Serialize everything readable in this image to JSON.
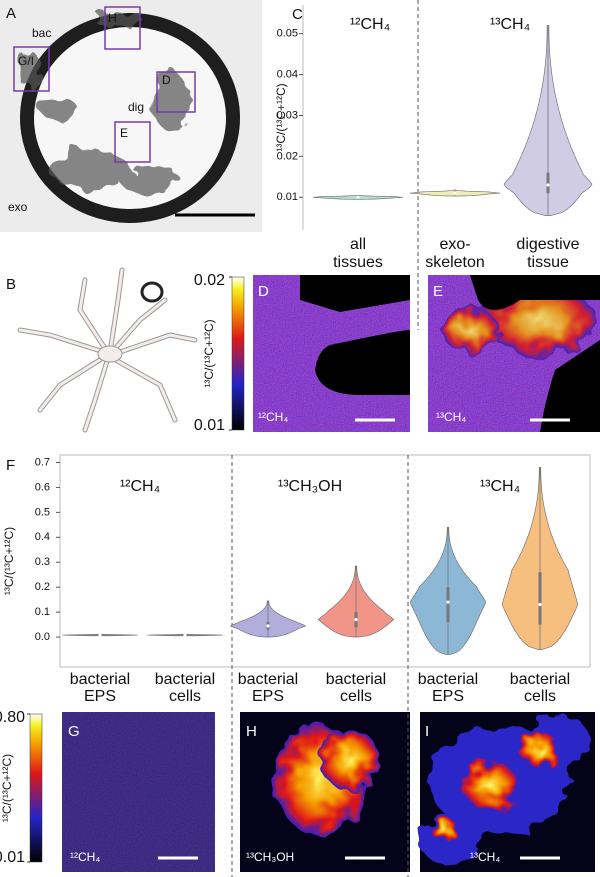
{
  "panel_a": {
    "letter": "A",
    "labels": [
      "bac",
      "dig",
      "exo"
    ],
    "boxes": [
      "G/I",
      "H",
      "D",
      "E"
    ]
  },
  "panel_b": {
    "letter": "B"
  },
  "colorbars": [
    {
      "label": "¹³C/(¹³C+¹²C)",
      "ticks": [
        0.01,
        0.02
      ]
    },
    {
      "label": "¹³C/(¹³C+¹²C)",
      "ticks": [
        0.01,
        {
          "value": 0.8,
          "label": "0.80"
        }
      ]
    }
  ],
  "images": [
    {
      "letter": "D",
      "label": "¹²CH₄"
    },
    {
      "letter": "E",
      "label": "¹³CH₄"
    },
    {
      "letter": "G",
      "label": "¹²CH₄"
    },
    {
      "letter": "H",
      "label": "¹³CH₃OH"
    },
    {
      "letter": "I",
      "label": "¹³CH₄"
    }
  ],
  "chart_data": [
    {
      "type": "violin",
      "letter": "C",
      "ylabel": "¹³C/(¹³C+¹²C)",
      "groups": [
        "¹²CH₄",
        "¹³CH₄"
      ],
      "categories": [
        [
          "all",
          "tissues"
        ],
        [
          "exo-",
          "skeleton"
        ],
        [
          "digestive",
          "tissue"
        ]
      ],
      "violins": [
        {
          "color": "#a8dccb",
          "min": 0.0095,
          "q1": 0.0098,
          "median": 0.01,
          "q3": 0.0102,
          "max": 0.0105
        },
        {
          "color": "#eeeab0",
          "min": 0.0103,
          "q1": 0.0108,
          "median": 0.011,
          "q3": 0.0113,
          "max": 0.0118
        },
        {
          "color": "#cbc6e2",
          "min": 0.0055,
          "q1": 0.011,
          "median": 0.013,
          "q3": 0.016,
          "max": 0.052
        }
      ],
      "ylim": [
        0.002,
        0.057
      ],
      "yticks": [
        0.01,
        0.02,
        0.03,
        0.04,
        0.05
      ]
    },
    {
      "type": "violin",
      "letter": "F",
      "ylabel": "¹³C/(¹³C+¹²C)",
      "groups": [
        "¹²CH₄",
        "¹³CH₃OH",
        "¹³CH₄"
      ],
      "categories": [
        [
          "bacterial",
          "EPS"
        ],
        [
          "bacterial",
          "cells"
        ],
        [
          "bacterial",
          "EPS"
        ],
        [
          "bacterial",
          "cells"
        ],
        [
          "bacterial",
          "EPS"
        ],
        [
          "bacterial",
          "cells"
        ]
      ],
      "violins": [
        {
          "color": "#8a8a8a",
          "min": 0.005,
          "q1": 0.007,
          "median": 0.008,
          "q3": 0.009,
          "max": 0.012
        },
        {
          "color": "#8a8a8a",
          "min": 0.005,
          "q1": 0.007,
          "median": 0.008,
          "q3": 0.009,
          "max": 0.012
        },
        {
          "color": "#aaa4d8",
          "min": 0.0,
          "q1": 0.03,
          "median": 0.045,
          "q3": 0.06,
          "max": 0.145
        },
        {
          "color": "#f08a7c",
          "min": 0.0,
          "q1": 0.04,
          "median": 0.07,
          "q3": 0.1,
          "max": 0.285
        },
        {
          "color": "#80b0d2",
          "min": -0.07,
          "q1": 0.06,
          "median": 0.14,
          "q3": 0.2,
          "max": 0.44
        },
        {
          "color": "#f5b872",
          "min": -0.05,
          "q1": 0.05,
          "median": 0.13,
          "q3": 0.26,
          "max": 0.68
        }
      ],
      "ylim": [
        -0.12,
        0.73
      ],
      "yticks": [
        {
          "value": 0,
          "label": "0.0"
        },
        0.1,
        0.2,
        0.3,
        0.4,
        0.5,
        0.6,
        0.7
      ]
    }
  ]
}
